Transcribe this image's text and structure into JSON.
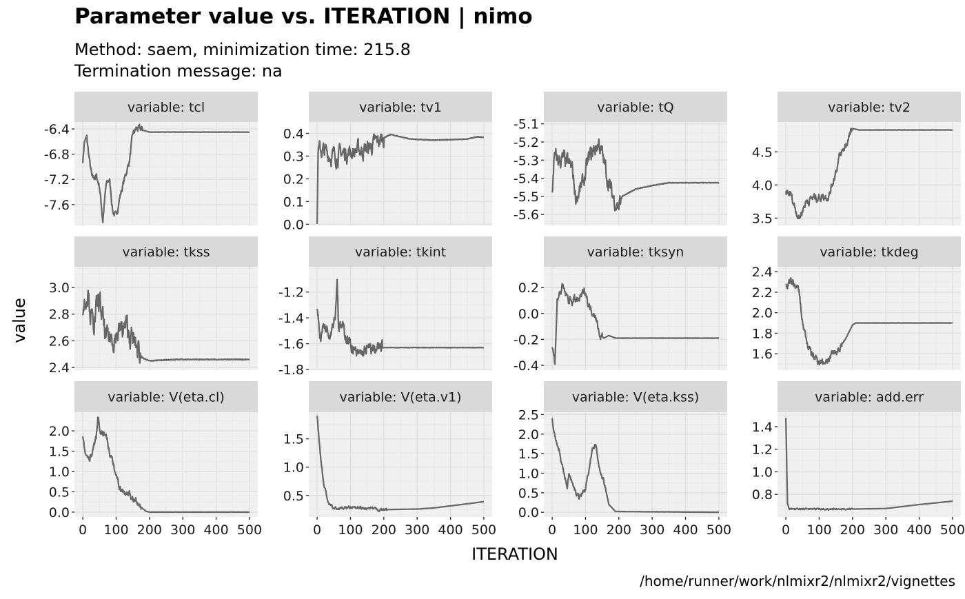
{
  "chart_data": {
    "type": "line",
    "title": "Parameter value vs. ITERATION | nimo",
    "subtitle": [
      "Method: saem, minimization time: 215.8",
      "Termination message: na"
    ],
    "xlabel": "ITERATION",
    "ylabel": "value",
    "caption": "/home/runner/work/nlmixr2/nlmixr2/vignettes",
    "strip_prefix": "variable: ",
    "xlim": [
      -25,
      525
    ],
    "xticks": [
      0,
      100,
      200,
      300,
      400,
      500
    ],
    "grid": true,
    "line_color": "#666666",
    "panels": [
      {
        "variable": "tcl",
        "ylim": [
          -7.93,
          -6.29
        ],
        "yticks": [
          -6.4,
          -6.8,
          -7.2,
          -7.6
        ],
        "ytick_labels": [
          "-6.4",
          "-6.8",
          "-7.2",
          "-7.6"
        ],
        "keypoints": [
          [
            0,
            -6.9
          ],
          [
            5,
            -6.6
          ],
          [
            12,
            -6.55
          ],
          [
            20,
            -6.9
          ],
          [
            28,
            -7.2
          ],
          [
            40,
            -7.15
          ],
          [
            50,
            -7.3
          ],
          [
            60,
            -7.85
          ],
          [
            70,
            -7.3
          ],
          [
            80,
            -7.2
          ],
          [
            90,
            -7.7
          ],
          [
            100,
            -7.8
          ],
          [
            110,
            -7.5
          ],
          [
            120,
            -7.3
          ],
          [
            140,
            -6.9
          ],
          [
            150,
            -6.5
          ],
          [
            160,
            -6.4
          ],
          [
            180,
            -6.42
          ],
          [
            200,
            -6.45
          ],
          [
            500,
            -6.45
          ]
        ],
        "noise": 0.07,
        "noise_until": 180
      },
      {
        "variable": "tv1",
        "ylim": [
          -0.005,
          0.45
        ],
        "yticks": [
          0,
          0.1,
          0.2,
          0.3,
          0.4
        ],
        "ytick_labels": [
          "0.0",
          "0.1",
          "0.2",
          "0.3",
          "0.4"
        ],
        "keypoints": [
          [
            0,
            0.02
          ],
          [
            3,
            0.33
          ],
          [
            50,
            0.3
          ],
          [
            100,
            0.32
          ],
          [
            150,
            0.33
          ],
          [
            200,
            0.38
          ],
          [
            220,
            0.395
          ],
          [
            280,
            0.375
          ],
          [
            350,
            0.37
          ],
          [
            450,
            0.375
          ],
          [
            480,
            0.385
          ],
          [
            500,
            0.382
          ]
        ],
        "noise": 0.045,
        "noise_until": 200
      },
      {
        "variable": "tQ",
        "ylim": [
          -5.66,
          -5.09
        ],
        "yticks": [
          -5.1,
          -5.2,
          -5.3,
          -5.4,
          -5.5,
          -5.6
        ],
        "ytick_labels": [
          "-5.1",
          "-5.2",
          "-5.3",
          "-5.4",
          "-5.5",
          "-5.6"
        ],
        "keypoints": [
          [
            0,
            -5.5
          ],
          [
            5,
            -5.3
          ],
          [
            30,
            -5.3
          ],
          [
            60,
            -5.35
          ],
          [
            70,
            -5.5
          ],
          [
            90,
            -5.45
          ],
          [
            110,
            -5.3
          ],
          [
            140,
            -5.2
          ],
          [
            160,
            -5.35
          ],
          [
            180,
            -5.5
          ],
          [
            200,
            -5.55
          ],
          [
            210,
            -5.5
          ],
          [
            250,
            -5.46
          ],
          [
            300,
            -5.44
          ],
          [
            350,
            -5.425
          ],
          [
            500,
            -5.425
          ]
        ],
        "noise": 0.06,
        "noise_until": 205
      },
      {
        "variable": "tv2",
        "ylim": [
          3.39,
          4.95
        ],
        "yticks": [
          3.5,
          4.0,
          4.5
        ],
        "ytick_labels": [
          "3.5",
          "4.0",
          "4.5"
        ],
        "keypoints": [
          [
            0,
            3.9
          ],
          [
            15,
            3.85
          ],
          [
            25,
            3.7
          ],
          [
            40,
            3.5
          ],
          [
            60,
            3.75
          ],
          [
            80,
            3.8
          ],
          [
            130,
            3.85
          ],
          [
            160,
            4.4
          ],
          [
            180,
            4.6
          ],
          [
            200,
            4.85
          ],
          [
            220,
            4.83
          ],
          [
            500,
            4.83
          ]
        ],
        "noise": 0.08,
        "noise_until": 195
      },
      {
        "variable": "tkss",
        "ylim": [
          2.38,
          3.155
        ],
        "yticks": [
          2.4,
          2.6,
          2.8,
          3.0
        ],
        "ytick_labels": [
          "2.4",
          "2.6",
          "2.8",
          "3.0"
        ],
        "keypoints": [
          [
            0,
            2.85
          ],
          [
            15,
            3.0
          ],
          [
            30,
            2.7
          ],
          [
            50,
            2.9
          ],
          [
            70,
            2.6
          ],
          [
            100,
            2.65
          ],
          [
            130,
            2.7
          ],
          [
            150,
            2.6
          ],
          [
            160,
            2.55
          ],
          [
            180,
            2.47
          ],
          [
            200,
            2.45
          ],
          [
            280,
            2.46
          ],
          [
            500,
            2.46
          ]
        ],
        "noise": 0.11,
        "noise_until": 175
      },
      {
        "variable": "tkint",
        "ylim": [
          -1.805,
          -1.004
        ],
        "yticks": [
          -1.2,
          -1.4,
          -1.6,
          -1.8
        ],
        "ytick_labels": [
          "-1.2",
          "-1.4",
          "-1.6",
          "-1.8"
        ],
        "keypoints": [
          [
            0,
            -1.3
          ],
          [
            10,
            -1.55
          ],
          [
            20,
            -1.45
          ],
          [
            40,
            -1.5
          ],
          [
            55,
            -1.35
          ],
          [
            60,
            -1.07
          ],
          [
            64,
            -1.45
          ],
          [
            80,
            -1.5
          ],
          [
            100,
            -1.6
          ],
          [
            120,
            -1.7
          ],
          [
            150,
            -1.65
          ],
          [
            180,
            -1.64
          ],
          [
            200,
            -1.63
          ],
          [
            500,
            -1.63
          ]
        ],
        "noise": 0.06,
        "noise_until": 195
      },
      {
        "variable": "tksyn",
        "ylim": [
          -0.437,
          0.36
        ],
        "yticks": [
          0.2,
          0.0,
          -0.2,
          -0.4
        ],
        "ytick_labels": [
          "0.2",
          "0.0",
          "-0.2",
          "-0.4"
        ],
        "keypoints": [
          [
            0,
            -0.25
          ],
          [
            8,
            -0.38
          ],
          [
            15,
            0.1
          ],
          [
            30,
            0.2
          ],
          [
            50,
            0.1
          ],
          [
            80,
            0.1
          ],
          [
            100,
            0.18
          ],
          [
            110,
            0.05
          ],
          [
            130,
            0.0
          ],
          [
            140,
            -0.15
          ],
          [
            155,
            -0.19
          ],
          [
            170,
            -0.17
          ],
          [
            190,
            -0.19
          ],
          [
            500,
            -0.19
          ]
        ],
        "noise": 0.04,
        "noise_until": 150
      },
      {
        "variable": "tkdeg",
        "ylim": [
          1.44,
          2.448
        ],
        "yticks": [
          1.6,
          1.8,
          2.0,
          2.2,
          2.4
        ],
        "ytick_labels": [
          "1.6",
          "1.8",
          "2.0",
          "2.2",
          "2.4"
        ],
        "keypoints": [
          [
            0,
            2.25
          ],
          [
            20,
            2.3
          ],
          [
            40,
            2.2
          ],
          [
            50,
            1.9
          ],
          [
            60,
            1.75
          ],
          [
            75,
            1.6
          ],
          [
            90,
            1.55
          ],
          [
            110,
            1.52
          ],
          [
            130,
            1.55
          ],
          [
            160,
            1.65
          ],
          [
            180,
            1.75
          ],
          [
            200,
            1.88
          ],
          [
            210,
            1.9
          ],
          [
            500,
            1.9
          ]
        ],
        "noise": 0.05,
        "noise_until": 170
      },
      {
        "variable": "V(eta.cl)",
        "ylim": [
          -0.12,
          2.46
        ],
        "yticks": [
          0.0,
          0.5,
          1.0,
          1.5,
          2.0
        ],
        "ytick_labels": [
          "0.0",
          "0.5",
          "1.0",
          "1.5",
          "2.0"
        ],
        "keypoints": [
          [
            0,
            1.9
          ],
          [
            10,
            1.3
          ],
          [
            25,
            1.4
          ],
          [
            40,
            1.8
          ],
          [
            45,
            2.3
          ],
          [
            55,
            1.9
          ],
          [
            70,
            1.95
          ],
          [
            80,
            1.5
          ],
          [
            100,
            0.9
          ],
          [
            115,
            0.55
          ],
          [
            140,
            0.45
          ],
          [
            170,
            0.15
          ],
          [
            190,
            0.02
          ],
          [
            200,
            0
          ],
          [
            500,
            0
          ]
        ],
        "noise": 0.1,
        "noise_until": 175
      },
      {
        "variable": "V(eta.v1)",
        "ylim": [
          0.12,
          1.97
        ],
        "yticks": [
          0.5,
          1.0,
          1.5
        ],
        "ytick_labels": [
          "0.5",
          "1.0",
          "1.5"
        ],
        "keypoints": [
          [
            0,
            1.9
          ],
          [
            10,
            1.2
          ],
          [
            20,
            0.7
          ],
          [
            35,
            0.35
          ],
          [
            50,
            0.27
          ],
          [
            100,
            0.28
          ],
          [
            200,
            0.25
          ],
          [
            300,
            0.26
          ],
          [
            350,
            0.28
          ],
          [
            420,
            0.33
          ],
          [
            500,
            0.39
          ]
        ],
        "noise": 0.03,
        "noise_until": 210
      },
      {
        "variable": "V(eta.kss)",
        "ylim": [
          -0.12,
          2.56
        ],
        "yticks": [
          0.0,
          0.5,
          1.0,
          1.5,
          2.0,
          2.5
        ],
        "ytick_labels": [
          "0.0",
          "0.5",
          "1.0",
          "1.5",
          "2.0",
          "2.5"
        ],
        "keypoints": [
          [
            0,
            2.4
          ],
          [
            10,
            1.9
          ],
          [
            20,
            1.6
          ],
          [
            35,
            1.0
          ],
          [
            45,
            0.65
          ],
          [
            50,
            1.0
          ],
          [
            65,
            0.6
          ],
          [
            80,
            0.4
          ],
          [
            100,
            0.6
          ],
          [
            115,
            1.4
          ],
          [
            130,
            1.8
          ],
          [
            140,
            1.2
          ],
          [
            155,
            0.8
          ],
          [
            170,
            0.2
          ],
          [
            190,
            0.02
          ],
          [
            500,
            0
          ]
        ],
        "noise": 0.08,
        "noise_until": 160
      },
      {
        "variable": "add.err",
        "ylim": [
          0.6,
          1.528
        ],
        "yticks": [
          0.8,
          1.0,
          1.2,
          1.4
        ],
        "ytick_labels": [
          "0.8",
          "1.0",
          "1.2",
          "1.4"
        ],
        "keypoints": [
          [
            0,
            1.48
          ],
          [
            5,
            0.72
          ],
          [
            10,
            0.67
          ],
          [
            200,
            0.67
          ],
          [
            300,
            0.675
          ],
          [
            400,
            0.71
          ],
          [
            500,
            0.74
          ]
        ],
        "noise": 0.008,
        "noise_until": 200
      }
    ]
  }
}
